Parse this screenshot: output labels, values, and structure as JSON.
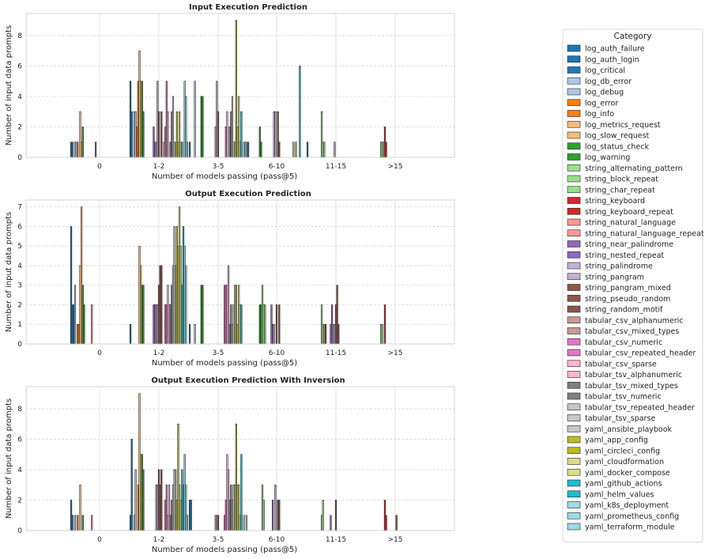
{
  "figure": {
    "legend_title": "Category"
  },
  "categories": [
    {
      "name": "log_auth_failure",
      "color": "#1f77b4"
    },
    {
      "name": "log_auth_login",
      "color": "#1f77b4"
    },
    {
      "name": "log_critical",
      "color": "#1f77b4"
    },
    {
      "name": "log_db_error",
      "color": "#aec7e8"
    },
    {
      "name": "log_debug",
      "color": "#aec7e8"
    },
    {
      "name": "log_error",
      "color": "#ff7f0e"
    },
    {
      "name": "log_info",
      "color": "#ff7f0e"
    },
    {
      "name": "log_metrics_request",
      "color": "#ffbb78"
    },
    {
      "name": "log_slow_request",
      "color": "#ffbb78"
    },
    {
      "name": "log_status_check",
      "color": "#2ca02c"
    },
    {
      "name": "log_warning",
      "color": "#2ca02c"
    },
    {
      "name": "string_alternating_pattern",
      "color": "#98df8a"
    },
    {
      "name": "string_block_repeat",
      "color": "#98df8a"
    },
    {
      "name": "string_char_repeat",
      "color": "#98df8a"
    },
    {
      "name": "string_keyboard",
      "color": "#d62728"
    },
    {
      "name": "string_keyboard_repeat",
      "color": "#d62728"
    },
    {
      "name": "string_natural_language",
      "color": "#ff9896"
    },
    {
      "name": "string_natural_language_repeat",
      "color": "#ff9896"
    },
    {
      "name": "string_near_palindrome",
      "color": "#9467bd"
    },
    {
      "name": "string_nested_repeat",
      "color": "#9467bd"
    },
    {
      "name": "string_palindrome",
      "color": "#c5b0d5"
    },
    {
      "name": "string_pangram",
      "color": "#c5b0d5"
    },
    {
      "name": "string_pangram_mixed",
      "color": "#8c564b"
    },
    {
      "name": "string_pseudo_random",
      "color": "#8c564b"
    },
    {
      "name": "string_random_motif",
      "color": "#8c564b"
    },
    {
      "name": "tabular_csv_alphanumeric",
      "color": "#c49c94"
    },
    {
      "name": "tabular_csv_mixed_types",
      "color": "#c49c94"
    },
    {
      "name": "tabular_csv_numeric",
      "color": "#e377c2"
    },
    {
      "name": "tabular_csv_repeated_header",
      "color": "#e377c2"
    },
    {
      "name": "tabular_csv_sparse",
      "color": "#f7b6d2"
    },
    {
      "name": "tabular_tsv_alphanumeric",
      "color": "#f7b6d2"
    },
    {
      "name": "tabular_tsv_mixed_types",
      "color": "#7f7f7f"
    },
    {
      "name": "tabular_tsv_numeric",
      "color": "#7f7f7f"
    },
    {
      "name": "tabular_tsv_repeated_header",
      "color": "#c7c7c7"
    },
    {
      "name": "tabular_tsv_sparse",
      "color": "#c7c7c7"
    },
    {
      "name": "yaml_ansible_playbook",
      "color": "#c7c7c7"
    },
    {
      "name": "yaml_app_config",
      "color": "#bcbd22"
    },
    {
      "name": "yaml_circleci_config",
      "color": "#bcbd22"
    },
    {
      "name": "yaml_cloudformation",
      "color": "#dbdb8d"
    },
    {
      "name": "yaml_docker_compose",
      "color": "#dbdb8d"
    },
    {
      "name": "yaml_github_actions",
      "color": "#17becf"
    },
    {
      "name": "yaml_helm_values",
      "color": "#17becf"
    },
    {
      "name": "yaml_k8s_deployment",
      "color": "#9edae5"
    },
    {
      "name": "yaml_prometheus_config",
      "color": "#9edae5"
    },
    {
      "name": "yaml_terraform_module",
      "color": "#9edae5"
    }
  ],
  "chart_data": [
    {
      "type": "bar",
      "title": "Input Execution Prediction",
      "xlabel": "Number of models passing (pass@5)",
      "ylabel": "Number of input data prompts",
      "x_tick_labels": [
        "0",
        "1-2",
        "3-5",
        "6-10",
        "11-15",
        ">15"
      ],
      "y_ticks": [
        0,
        2,
        4,
        6,
        8
      ],
      "ylim": [
        0,
        9.45
      ],
      "grid": true,
      "values": [
        [
          1,
          5,
          1,
          1,
          1,
          0
        ],
        [
          1,
          3,
          0,
          0,
          0,
          0
        ],
        [
          0,
          0,
          0,
          0,
          0,
          0
        ],
        [
          1,
          3,
          0,
          0,
          0,
          0
        ],
        [
          1,
          3,
          5,
          0,
          0,
          0
        ],
        [
          1,
          2,
          0,
          0,
          0,
          0
        ],
        [
          0,
          5,
          0,
          0,
          0,
          0
        ],
        [
          3,
          7,
          0,
          0,
          0,
          0
        ],
        [
          1,
          5,
          0,
          0,
          0,
          0
        ],
        [
          2,
          5,
          4,
          2,
          0,
          0
        ],
        [
          0,
          3,
          4,
          1,
          0,
          0
        ],
        [
          0,
          0,
          0,
          0,
          3,
          1
        ],
        [
          0,
          0,
          0,
          0,
          1,
          1
        ],
        [
          0,
          0,
          0,
          0,
          1,
          1
        ],
        [
          0,
          0,
          0,
          0,
          0,
          2
        ],
        [
          0,
          0,
          0,
          0,
          0,
          1
        ],
        [
          0,
          0,
          0,
          0,
          0,
          0
        ],
        [
          0,
          0,
          0,
          0,
          0,
          0
        ],
        [
          0,
          2,
          0,
          0,
          0,
          0
        ],
        [
          1,
          1,
          0,
          0,
          0,
          0
        ],
        [
          0,
          1,
          2,
          3,
          0,
          0
        ],
        [
          0,
          5,
          5,
          3,
          1,
          0
        ],
        [
          0,
          3,
          3,
          0,
          0,
          0
        ],
        [
          0,
          0,
          0,
          3,
          0,
          0
        ],
        [
          0,
          3,
          0,
          1,
          0,
          0
        ],
        [
          0,
          0,
          0,
          0,
          0,
          0
        ],
        [
          0,
          1,
          0,
          0,
          0,
          0
        ],
        [
          0,
          2,
          0,
          0,
          0,
          0
        ],
        [
          0,
          5,
          2,
          0,
          0,
          0
        ],
        [
          0,
          3,
          3,
          0,
          0,
          0
        ],
        [
          0,
          0,
          0,
          0,
          0,
          0
        ],
        [
          0,
          1,
          2,
          0,
          0,
          0
        ],
        [
          0,
          3,
          3,
          0,
          0,
          0
        ],
        [
          0,
          4,
          4,
          0,
          0,
          0
        ],
        [
          0,
          1,
          1,
          0,
          0,
          0
        ],
        [
          0,
          1,
          1,
          1,
          0,
          0
        ],
        [
          0,
          3,
          9,
          0,
          0,
          0
        ],
        [
          0,
          1,
          2,
          1,
          0,
          0
        ],
        [
          0,
          3,
          4,
          0,
          0,
          0
        ],
        [
          0,
          1,
          1,
          0,
          0,
          0
        ],
        [
          0,
          1,
          3,
          6,
          0,
          0
        ],
        [
          0,
          0,
          0,
          0,
          0,
          0
        ],
        [
          0,
          5,
          1,
          0,
          0,
          0
        ],
        [
          0,
          4,
          1,
          0,
          0,
          0
        ],
        [
          0,
          1,
          1,
          0,
          0,
          0
        ]
      ]
    },
    {
      "type": "bar",
      "title": "Output Execution Prediction",
      "xlabel": "Number of models passing (pass@5)",
      "ylabel": "Number of input data prompts",
      "x_tick_labels": [
        "0",
        "1-2",
        "3-5",
        "6-10",
        "11-15",
        ">15"
      ],
      "y_ticks": [
        0,
        1,
        2,
        3,
        4,
        5,
        6,
        7
      ],
      "ylim": [
        0,
        7.35
      ],
      "grid": true,
      "values": [
        [
          6,
          1,
          1,
          0,
          0,
          0
        ],
        [
          2,
          0,
          0,
          0,
          0,
          0
        ],
        [
          2,
          0,
          0,
          0,
          0,
          0
        ],
        [
          3,
          0,
          0,
          0,
          0,
          0
        ],
        [
          0,
          0,
          1,
          0,
          0,
          0
        ],
        [
          1,
          0,
          0,
          0,
          0,
          0
        ],
        [
          1,
          0,
          0,
          0,
          0,
          0
        ],
        [
          4,
          5,
          0,
          0,
          0,
          0
        ],
        [
          7,
          4,
          0,
          0,
          0,
          0
        ],
        [
          3,
          3,
          3,
          2,
          0,
          0
        ],
        [
          2,
          3,
          3,
          2,
          0,
          0
        ],
        [
          0,
          0,
          0,
          3,
          2,
          1
        ],
        [
          0,
          0,
          0,
          2,
          1,
          1
        ],
        [
          0,
          0,
          0,
          2,
          1,
          0
        ],
        [
          0,
          0,
          0,
          0,
          1,
          2
        ],
        [
          0,
          0,
          0,
          0,
          0,
          0
        ],
        [
          2,
          0,
          0,
          0,
          0,
          0
        ],
        [
          0,
          0,
          0,
          0,
          0,
          0
        ],
        [
          0,
          2,
          0,
          2,
          1,
          0
        ],
        [
          0,
          2,
          0,
          1,
          2,
          0
        ],
        [
          0,
          2,
          0,
          1,
          1,
          0
        ],
        [
          0,
          2,
          0,
          0,
          1,
          0
        ],
        [
          0,
          3,
          0,
          2,
          2,
          0
        ],
        [
          0,
          4,
          0,
          0,
          3,
          0
        ],
        [
          0,
          4,
          0,
          2,
          1,
          0
        ],
        [
          0,
          0,
          0,
          0,
          0,
          0
        ],
        [
          0,
          0,
          0,
          0,
          0,
          0
        ],
        [
          0,
          2,
          3,
          0,
          0,
          0
        ],
        [
          0,
          2,
          3,
          0,
          0,
          0
        ],
        [
          0,
          3,
          3,
          0,
          0,
          0
        ],
        [
          0,
          2,
          4,
          0,
          0,
          0
        ],
        [
          0,
          2,
          1,
          0,
          0,
          0
        ],
        [
          0,
          3,
          2,
          0,
          0,
          0
        ],
        [
          0,
          4,
          1,
          0,
          0,
          0
        ],
        [
          0,
          6,
          2,
          0,
          0,
          0
        ],
        [
          0,
          4,
          3,
          0,
          0,
          0
        ],
        [
          0,
          6,
          3,
          0,
          0,
          0
        ],
        [
          0,
          5,
          1,
          0,
          0,
          0
        ],
        [
          0,
          7,
          3,
          0,
          0,
          0
        ],
        [
          0,
          5,
          2,
          0,
          0,
          0
        ],
        [
          0,
          3,
          2,
          0,
          0,
          0
        ],
        [
          0,
          6,
          0,
          0,
          0,
          0
        ],
        [
          0,
          5,
          0,
          0,
          0,
          0
        ],
        [
          0,
          4,
          0,
          0,
          0,
          0
        ],
        [
          0,
          0,
          0,
          0,
          0,
          0
        ]
      ]
    },
    {
      "type": "bar",
      "title": "Output Execution Prediction With Inversion",
      "xlabel": "Number of models passing (pass@5)",
      "ylabel": "Number of input data prompts",
      "x_tick_labels": [
        "0",
        "1-2",
        "3-5",
        "6-10",
        "11-15",
        ">15"
      ],
      "y_ticks": [
        0,
        2,
        4,
        6,
        8
      ],
      "ylim": [
        0,
        9.45
      ],
      "grid": true,
      "values": [
        [
          2,
          1,
          2,
          0,
          0,
          0
        ],
        [
          1,
          6,
          2,
          0,
          0,
          0
        ],
        [
          0,
          0,
          0,
          0,
          0,
          0
        ],
        [
          1,
          1,
          0,
          0,
          0,
          0
        ],
        [
          0,
          4,
          0,
          0,
          0,
          0
        ],
        [
          1,
          0,
          0,
          0,
          0,
          0
        ],
        [
          0,
          3,
          0,
          0,
          0,
          0
        ],
        [
          3,
          9,
          0,
          0,
          0,
          0
        ],
        [
          0,
          5,
          0,
          0,
          0,
          0
        ],
        [
          1,
          5,
          0,
          0,
          0,
          0
        ],
        [
          0,
          4,
          0,
          0,
          0,
          0
        ],
        [
          0,
          0,
          0,
          3,
          1,
          0
        ],
        [
          0,
          0,
          0,
          2,
          2,
          0
        ],
        [
          0,
          0,
          0,
          0,
          0,
          0
        ],
        [
          0,
          0,
          0,
          0,
          0,
          2
        ],
        [
          0,
          0,
          0,
          0,
          0,
          1
        ],
        [
          1,
          0,
          0,
          0,
          0,
          0
        ],
        [
          0,
          0,
          0,
          0,
          0,
          0
        ],
        [
          0,
          0,
          0,
          0,
          1,
          0
        ],
        [
          0,
          0,
          0,
          2,
          0,
          0
        ],
        [
          0,
          3,
          1,
          0,
          0,
          0
        ],
        [
          0,
          3,
          1,
          3,
          0,
          0
        ],
        [
          0,
          4,
          1,
          0,
          2,
          0
        ],
        [
          0,
          3,
          0,
          2,
          0,
          1
        ],
        [
          0,
          4,
          0,
          2,
          0,
          0
        ],
        [
          0,
          0,
          0,
          0,
          0,
          0
        ],
        [
          0,
          0,
          0,
          0,
          0,
          0
        ],
        [
          0,
          2,
          1,
          0,
          0,
          0
        ],
        [
          0,
          3,
          2,
          0,
          0,
          0
        ],
        [
          0,
          1,
          5,
          0,
          0,
          0
        ],
        [
          0,
          3,
          4,
          0,
          0,
          0
        ],
        [
          0,
          1,
          2,
          0,
          0,
          0
        ],
        [
          0,
          2,
          3,
          0,
          0,
          0
        ],
        [
          0,
          3,
          2,
          0,
          0,
          0
        ],
        [
          0,
          4,
          3,
          0,
          0,
          0
        ],
        [
          0,
          4,
          3,
          0,
          0,
          0
        ],
        [
          0,
          2,
          7,
          0,
          0,
          0
        ],
        [
          0,
          7,
          3,
          0,
          0,
          0
        ],
        [
          0,
          3,
          3,
          0,
          0,
          0
        ],
        [
          0,
          2,
          1,
          0,
          0,
          0
        ],
        [
          0,
          4,
          5,
          0,
          0,
          0
        ],
        [
          0,
          3,
          0,
          0,
          0,
          0
        ],
        [
          0,
          5,
          1,
          0,
          0,
          0
        ],
        [
          0,
          3,
          0,
          0,
          0,
          0
        ],
        [
          0,
          1,
          1,
          0,
          0,
          0
        ]
      ]
    }
  ]
}
